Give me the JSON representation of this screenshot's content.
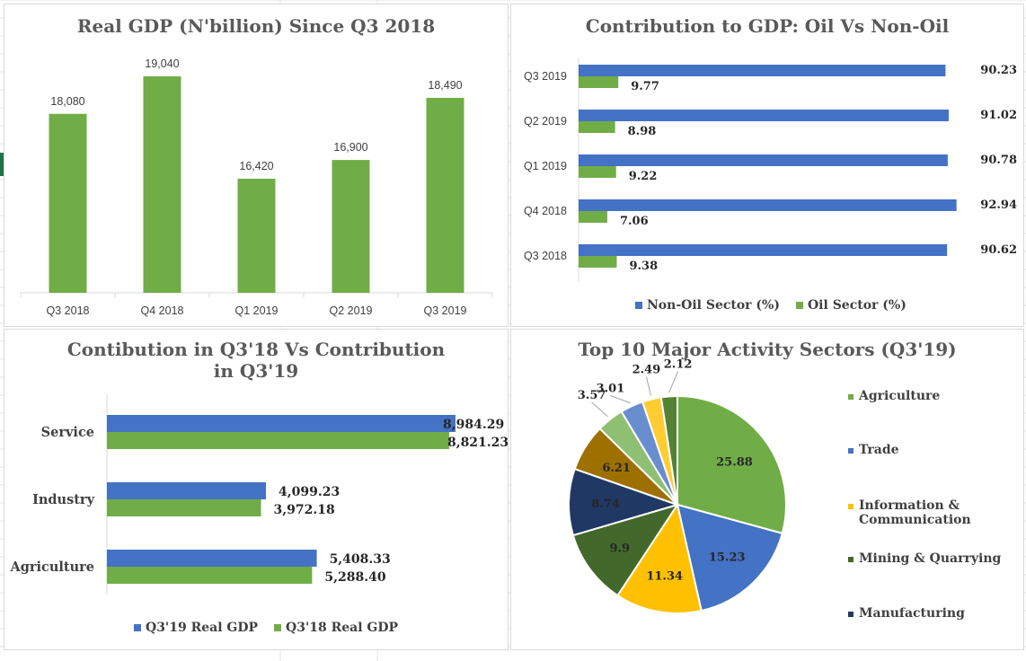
{
  "colors": {
    "blue": "#4472c4",
    "green": "#70ad47",
    "grid": "#e3e3e3",
    "text": "#595959"
  },
  "chart_data": [
    {
      "type": "bar",
      "title": "Real GDP (N'billion) Since Q3 2018",
      "categories": [
        "Q3 2018",
        "Q4 2018",
        "Q1 2019",
        "Q2 2019",
        "Q3 2019"
      ],
      "values": [
        18080,
        19040,
        16420,
        16900,
        18490
      ],
      "data_labels": [
        "18,080",
        "19,040",
        "16,420",
        "16,900",
        "18,490"
      ],
      "ylim": [
        13500,
        19500
      ],
      "color": "#70ad47"
    },
    {
      "type": "bar",
      "orientation": "horizontal",
      "title": "Contribution to GDP: Oil Vs Non-Oil",
      "categories": [
        "Q3 2019",
        "Q2 2019",
        "Q1 2019",
        "Q4 2018",
        "Q3 2018"
      ],
      "series": [
        {
          "name": "Non-Oil Sector (%)",
          "color": "#4472c4",
          "values": [
            90.23,
            91.02,
            90.78,
            92.94,
            90.62
          ]
        },
        {
          "name": "Oil Sector (%)",
          "color": "#70ad47",
          "values": [
            9.77,
            8.98,
            9.22,
            7.06,
            9.38
          ]
        }
      ],
      "xlim": [
        0,
        95
      ],
      "legend": "bottom"
    },
    {
      "type": "bar",
      "orientation": "horizontal",
      "title": "Contibution in Q3'18 Vs Contribution in Q3'19",
      "categories": [
        "Service",
        "Industry",
        "Agriculture"
      ],
      "series": [
        {
          "name": "Q3'19 Real GDP",
          "color": "#4472c4",
          "values": [
            8984.29,
            4099.23,
            5408.33
          ],
          "labels": [
            "8,984.29",
            "4,099.23",
            "5,408.33"
          ]
        },
        {
          "name": "Q3'18 Real GDP",
          "color": "#70ad47",
          "values": [
            8821.23,
            3972.18,
            5288.4
          ],
          "labels": [
            "8,821.23",
            "3,972.18",
            "5,288.40"
          ]
        }
      ],
      "xlim": [
        0,
        8984.29
      ],
      "legend": "bottom"
    },
    {
      "type": "pie",
      "title": "Top 10 Major Activity Sectors (Q3'19)",
      "slices": [
        {
          "label": "Agriculture",
          "value": 25.88,
          "text": "25.88",
          "color": "#70ad47"
        },
        {
          "label": "Trade",
          "value": 15.23,
          "text": "15.23",
          "color": "#4472c4"
        },
        {
          "label": "Information & Communication",
          "value": 11.34,
          "text": "11.34",
          "color": "#ffc000"
        },
        {
          "label": "Mining & Quarrying",
          "value": 9.9,
          "text": "9.9",
          "color": "#43682b"
        },
        {
          "label": "Manufacturing",
          "value": 8.74,
          "text": "8.74",
          "color": "#203864"
        },
        {
          "label": "",
          "value": 6.21,
          "text": "6.21",
          "color": "#9e7000"
        },
        {
          "label": "",
          "value": 3.57,
          "text": "3.57",
          "color": "#8fbf72"
        },
        {
          "label": "",
          "value": 3.01,
          "text": "3.01",
          "color": "#698ed0"
        },
        {
          "label": "",
          "value": 2.49,
          "text": "2.49",
          "color": "#ffcd33"
        },
        {
          "label": "",
          "value": 2.12,
          "text": "2.12",
          "color": "#548235"
        }
      ],
      "legend_entries": [
        "Agriculture",
        "Trade",
        "Information & Communication",
        "Mining & Quarrying",
        "Manufacturing"
      ],
      "legend": "right"
    }
  ]
}
